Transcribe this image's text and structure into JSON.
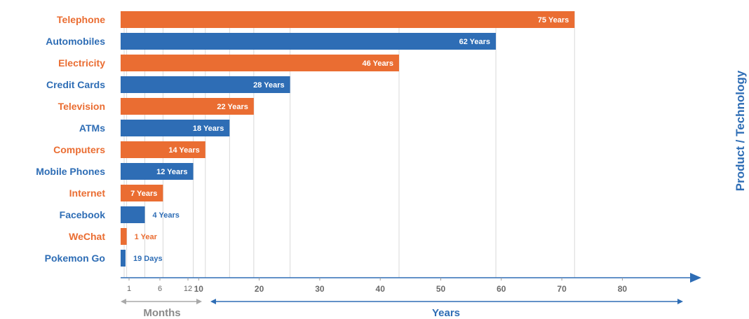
{
  "chart_data": {
    "type": "bar",
    "orientation": "horizontal",
    "categories": [
      "Telephone",
      "Automobiles",
      "Electricity",
      "Credit Cards",
      "Television",
      "ATMs",
      "Computers",
      "Mobile Phones",
      "Internet",
      "Facebook",
      "WeChat",
      "Pokemon Go"
    ],
    "values_years": [
      75,
      62,
      46,
      28,
      22,
      18,
      14,
      12,
      7,
      4,
      1,
      0.052
    ],
    "bar_labels": [
      "75 Years",
      "62 Years",
      "46 Years",
      "28 Years",
      "22 Years",
      "18 Years",
      "14 Years",
      "12 Years",
      "7 Years",
      "4 Years",
      "1 Year",
      "19 Days"
    ],
    "colors": [
      "#ea6d32",
      "#2e6db5",
      "#ea6d32",
      "#2e6db5",
      "#ea6d32",
      "#2e6db5",
      "#ea6d32",
      "#2e6db5",
      "#ea6d32",
      "#2e6db5",
      "#ea6d32",
      "#2e6db5"
    ],
    "x_ticks_months": [
      "1",
      "6",
      "12"
    ],
    "x_ticks_years": [
      "10",
      "20",
      "30",
      "40",
      "50",
      "60",
      "70",
      "80"
    ],
    "xlabel_months": "Months",
    "xlabel_years": "Years",
    "ylabel": "Product / Technology",
    "grid": "vertical"
  },
  "colors": {
    "orange": "#ea6d32",
    "blue": "#2e6db5",
    "axis_gray": "#9a9a9a",
    "tick_gray": "#6a6a6a"
  }
}
